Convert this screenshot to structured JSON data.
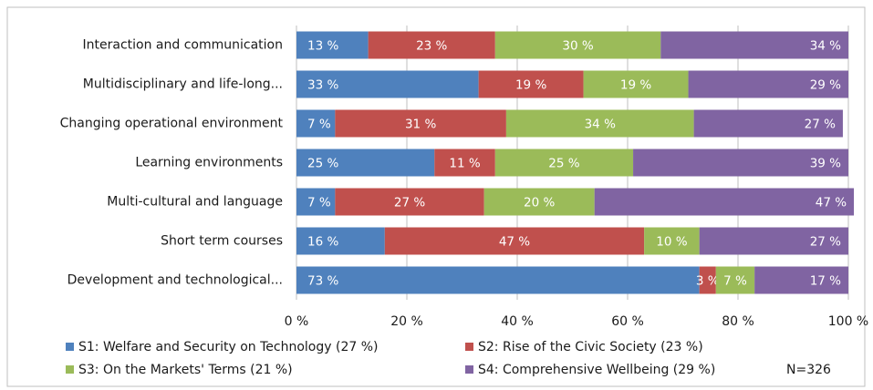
{
  "chart_data": {
    "type": "stacked-barh",
    "categories": [
      "Interaction and communication",
      "Multidisciplinary and life-long...",
      "Changing operational environment",
      "Learning environments",
      "Multi-cultural and language",
      "Short term courses",
      "Development and technological..."
    ],
    "series": [
      {
        "name": "S1: Welfare and Security on Technology (27 %)",
        "color": "#4f81bd",
        "values": [
          13,
          33,
          7,
          25,
          7,
          16,
          73
        ],
        "value_labels": [
          "13 %",
          "33 %",
          "7 %",
          "25 %",
          "7 %",
          "16 %",
          "73 %"
        ]
      },
      {
        "name": "S2: Rise of the Civic Society (23 %)",
        "color": "#c0504d",
        "values": [
          23,
          19,
          31,
          11,
          27,
          47,
          3
        ],
        "value_labels": [
          "23 %",
          "19 %",
          "31 %",
          "11 %",
          "27 %",
          "47 %",
          "3 %"
        ]
      },
      {
        "name": "S3: On the Markets' Terms (21 %)",
        "color": "#9bbb59",
        "values": [
          30,
          19,
          34,
          25,
          20,
          10,
          7
        ],
        "value_labels": [
          "30 %",
          "19 %",
          "34 %",
          "25 %",
          "20 %",
          "10 %",
          "7 %"
        ]
      },
      {
        "name": "S4: Comprehensive Wellbeing (29 %)",
        "color": "#8064a2",
        "values": [
          34,
          29,
          27,
          39,
          47,
          27,
          17
        ],
        "value_labels": [
          "34 %",
          "29 %",
          "27 %",
          "39 %",
          "47 %",
          "27 %",
          "17 %"
        ]
      }
    ],
    "xlim": [
      0,
      100
    ],
    "xticks": [
      {
        "value": 0,
        "label": "0 %"
      },
      {
        "value": 20,
        "label": "20 %"
      },
      {
        "value": 40,
        "label": "40 %"
      },
      {
        "value": 60,
        "label": "60 %"
      },
      {
        "value": 80,
        "label": "80 %"
      },
      {
        "value": 100,
        "label": "100 %"
      }
    ],
    "grid": true,
    "annotation": "N=326"
  }
}
